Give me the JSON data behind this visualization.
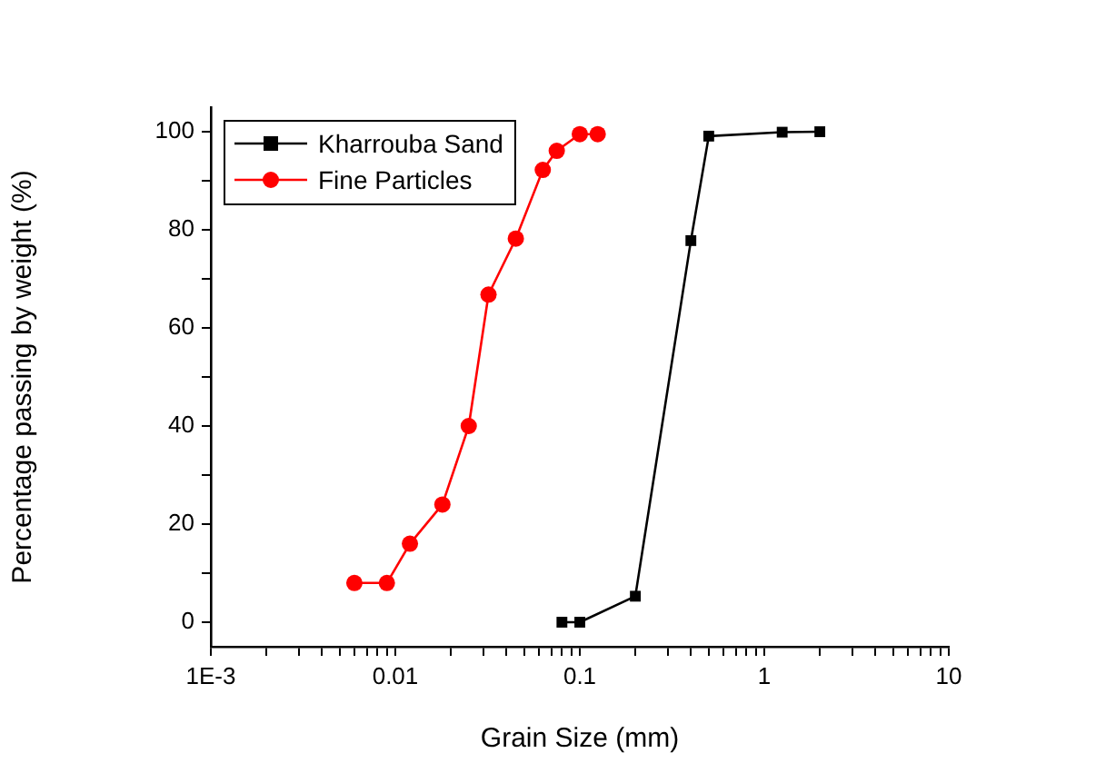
{
  "chart_data": {
    "type": "line",
    "xlabel": "Grain Size (mm)",
    "ylabel": "Percentage passing by weight (%)",
    "log": "x",
    "xlim": [
      0.001,
      10
    ],
    "ylim": [
      -5,
      105
    ],
    "xticks": [
      {
        "value": 0.001,
        "label": "1E-3"
      },
      {
        "value": 0.002,
        "label": null
      },
      {
        "value": 0.003,
        "label": null
      },
      {
        "value": 0.004,
        "label": null
      },
      {
        "value": 0.005,
        "label": null
      },
      {
        "value": 0.006,
        "label": null
      },
      {
        "value": 0.007,
        "label": null
      },
      {
        "value": 0.008,
        "label": null
      },
      {
        "value": 0.009,
        "label": null
      },
      0.01,
      {
        "value": 0.02,
        "label": null
      },
      {
        "value": 0.03,
        "label": null
      },
      {
        "value": 0.04,
        "label": null
      },
      {
        "value": 0.05,
        "label": null
      },
      {
        "value": 0.06,
        "label": null
      },
      {
        "value": 0.07,
        "label": null
      },
      {
        "value": 0.08,
        "label": null
      },
      {
        "value": 0.09,
        "label": null
      },
      0.1,
      {
        "value": 0.2,
        "label": null
      },
      {
        "value": 0.3,
        "label": null
      },
      {
        "value": 0.4,
        "label": null
      },
      {
        "value": 0.5,
        "label": null
      },
      {
        "value": 0.6,
        "label": null
      },
      {
        "value": 0.7,
        "label": null
      },
      {
        "value": 0.8,
        "label": null
      },
      {
        "value": 0.9,
        "label": null
      },
      1,
      {
        "value": 2,
        "label": null
      },
      {
        "value": 3,
        "label": null
      },
      {
        "value": 4,
        "label": null
      },
      {
        "value": 5,
        "label": null
      },
      {
        "value": 6,
        "label": null
      },
      {
        "value": 7,
        "label": null
      },
      {
        "value": 8,
        "label": null
      },
      {
        "value": 9,
        "label": null
      },
      10
    ],
    "yticks": [
      0,
      {
        "value": 10,
        "label": null
      },
      20,
      {
        "value": 30,
        "label": null
      },
      40,
      {
        "value": 50,
        "label": null
      },
      60,
      {
        "value": 70,
        "label": null
      },
      80,
      {
        "value": 90,
        "label": null
      },
      100
    ],
    "grid": false,
    "legend": "top left",
    "line_style": "solid",
    "series": [
      {
        "name": "Kharrouba Sand",
        "color": "#000000",
        "marker": "square",
        "x": [
          0.08,
          0.1,
          0.2,
          0.4,
          0.5,
          1.25,
          2
        ],
        "values": [
          0,
          0,
          5.3,
          77.8,
          99.1,
          99.9,
          100
        ]
      },
      {
        "name": "Fine Particles",
        "color": "#ff0000",
        "marker": "circle",
        "x": [
          0.006,
          0.009,
          0.012,
          0.018,
          0.025,
          0.032,
          0.045,
          0.063,
          0.075,
          0.1,
          0.125
        ],
        "values": [
          8,
          8,
          16,
          24,
          40,
          66.8,
          78.2,
          92.2,
          96.1,
          99.5,
          99.5
        ]
      }
    ]
  }
}
